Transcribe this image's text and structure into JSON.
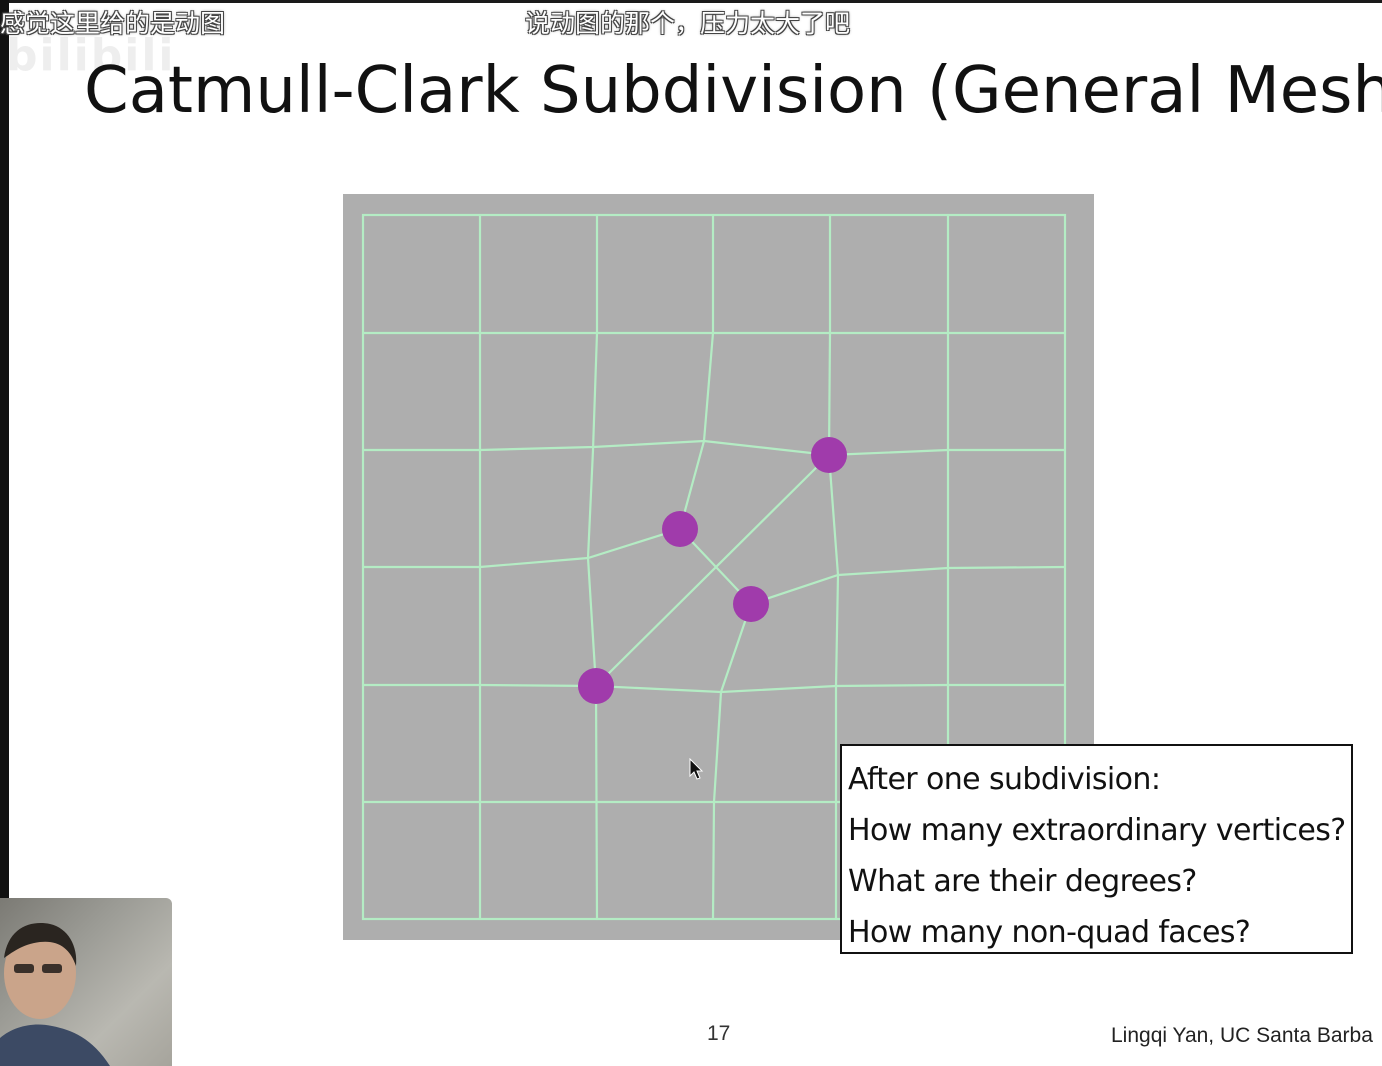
{
  "overlay": {
    "danmaku": [
      "感觉这里给的是动图",
      "说动图的那个，压力太大了吧"
    ],
    "watermark": "bilibili"
  },
  "slide": {
    "title": "Catmull-Clark Subdivision (General Mesh)",
    "callout_lines": [
      "After one subdivision:",
      "How many extraordinary vertices?",
      "What are their degrees?",
      "How many non-quad faces?"
    ],
    "page_number": "17",
    "footer": "Lingqi Yan, UC Santa Barba"
  },
  "colors": {
    "mesh_background": "#aeaeae",
    "mesh_lines": "#b4ecc4",
    "vertex_fill": "#a03bab",
    "text": "#111111"
  },
  "icons": {
    "cursor": "mouse-pointer-icon",
    "presenter": "webcam-presenter"
  }
}
